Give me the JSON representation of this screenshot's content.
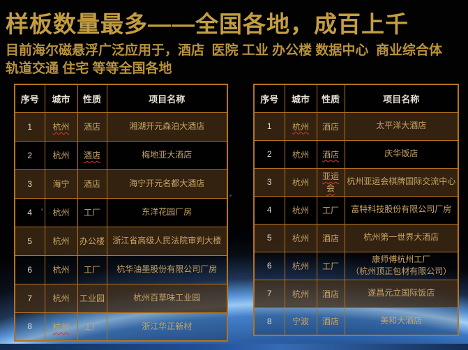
{
  "slide": {
    "title": "样板数量最多——全国各地，成百上千",
    "subtitle_line1": "目前海尔磁悬浮广泛应用于，酒店  医院 工业 办公楼 数据中心  商业综合体",
    "subtitle_line2": "轨道交通 住宅 等等全国各地"
  },
  "colors": {
    "title_gold": "#c39d41",
    "table_border_orange": "#b5731f",
    "row_highlight_brown": "#3e2a14",
    "cell_text_tan": "#c7a365",
    "earth_rim_blue": "#a6d2f7",
    "misspell_red": "#d8372a"
  },
  "tables": {
    "headers": [
      "序号",
      "城市",
      "性质",
      "项目名称"
    ],
    "left": {
      "rows": [
        {
          "no": "1",
          "city": "杭州",
          "type": "酒店",
          "project": "湘湖开元森泊大酒店",
          "city_misspell": true
        },
        {
          "no": "2",
          "city": "杭州",
          "type": "酒店",
          "project": "梅地亚大酒店",
          "type_misspell": true
        },
        {
          "no": "3",
          "city": "海宁",
          "type": "酒店",
          "project": "海宁开元名都大酒店"
        },
        {
          "no": "4",
          "city": "杭州",
          "type": "工厂",
          "project": "东洋花园厂房"
        },
        {
          "no": "5",
          "city": "杭州",
          "type": "办公楼",
          "project": "浙江省高级人民法院审判大楼"
        },
        {
          "no": "6",
          "city": "杭州",
          "type": "工厂",
          "project": "杭华油墨股份有限公司厂房"
        },
        {
          "no": "7",
          "city": "杭州",
          "type": "工业园",
          "project": "杭州百草味工业园"
        },
        {
          "no": "8",
          "city": "杭州",
          "type": "工厂",
          "project": "浙江华正新材",
          "city_misspell": true
        }
      ]
    },
    "right": {
      "rows": [
        {
          "no": "1",
          "city": "杭州",
          "type": "酒店",
          "project": "太平洋大酒店",
          "city_misspell": true
        },
        {
          "no": "2",
          "city": "杭州",
          "type": "酒店",
          "project": "庆华饭店",
          "type_misspell": true
        },
        {
          "no": "3",
          "city": "杭州",
          "type": "亚运会",
          "project": "杭州亚运会棋牌国际交流中心",
          "type_misspell": true
        },
        {
          "no": "4",
          "city": "杭州",
          "type": "工厂",
          "project": "富特科技股份有限公司厂房"
        },
        {
          "no": "5",
          "city": "杭州",
          "type": "酒店",
          "project": "杭州第一世界大酒店"
        },
        {
          "no": "6",
          "city": "杭州",
          "type": "工厂",
          "project": "康师傅杭州工厂\n（杭州顶正包材有限公司）"
        },
        {
          "no": "7",
          "city": "杭州",
          "type": "酒店",
          "project": "遂昌元立国际饭店"
        },
        {
          "no": "8",
          "city": "宁波",
          "type": "酒店",
          "project": "美和大酒店"
        }
      ]
    }
  }
}
